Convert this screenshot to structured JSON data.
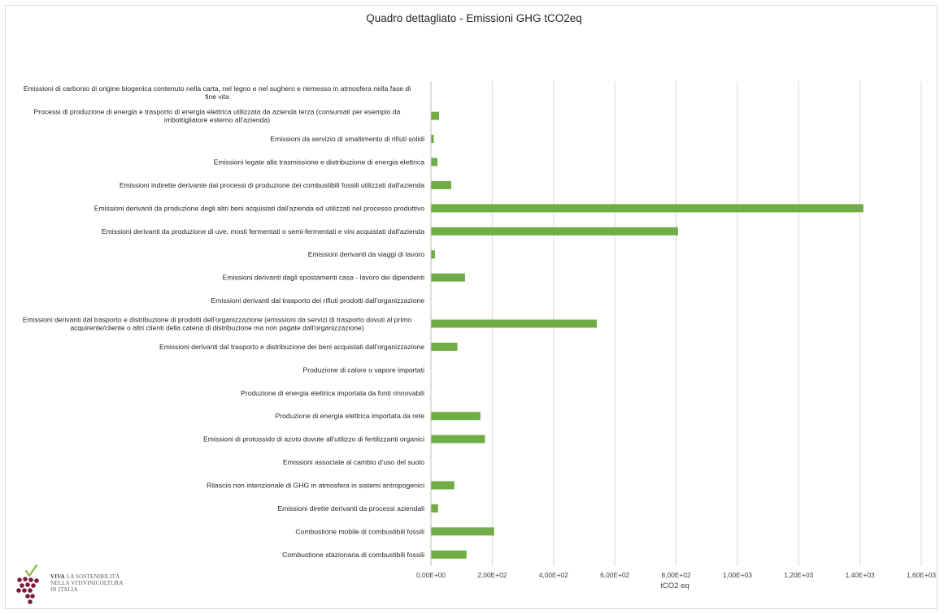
{
  "chart_data": {
    "type": "bar",
    "orientation": "horizontal",
    "title": "Quadro dettagliato - Emissioni GHG tCO2eq",
    "xlabel": "tCO2 eq",
    "ylabel": "",
    "xlim": [
      0,
      1600
    ],
    "grid": true,
    "bar_color": "#70ad47",
    "ticks": [
      "0,00E+00",
      "2,00E+02",
      "4,00E+02",
      "6,00E+02",
      "8,00E+02",
      "1,00E+03",
      "1,20E+03",
      "1,40E+03",
      "1,60E+03"
    ],
    "categories": [
      "Emissioni di carbonio di origine biogenica contenuto nella carta, nel legno  e nel sughero e riemesso in atmosfera nella fase di fine vita",
      "Processi di produzione di energia e trasporto di energia elettrica utilizzata  da azienda terza (consumati per esempio da imbottigliatore esterno all'azienda)",
      "Emissioni da servizio di smaltimento di rifiuti solidi",
      "Emissioni legate alla trasmissione e distribuzione  di energia elettrica",
      "Emissioni indirette derivante dai processi di produzione dei combustibili fossili utilizzati  dall'azienda",
      "Emissioni derivanti  da produzione degli altri  beni acquistati dall'azienda ed utilizzati  nel processo produttivo",
      "Emissioni derivanti  da produzione di uve,  mosti fermentati o semi-fermentati e vini  acquistati dall'azienda",
      "Emissioni derivanti  da viaggi di lavoro",
      "Emissioni derivanti  dagli spostamenti casa - lavoro dei dipendenti",
      "Emissioni derivanti  dal trasporto dei rifiuti prodotti dall'organizzazione",
      "Emissioni derivanti  dal trasporto e distribuzione di prodotti dell'organizzazione (emissioni da servizi di trasporto dovuti al primo acquirente/cliente o altri clienti della catena di distribuzione ma non pagate dall'organizzazione)",
      "Emissioni derivanti  dal trasporto e distribuzione dei beni acquistati dall'organizzazione",
      "Produzione di calore o vapore importati",
      "Produzione di energia elettrica importata da fonti rinnovabili",
      "Produzione di energia elettrica importata da rete",
      "Emissioni di protossido di azoto dovute all'utilizzo  di fertilizzanti organici",
      "Emissioni associate al cambio d'uso del suolo",
      "Rilascio non intenzionale di GHG in atmosfera in sistemi antropogenici",
      "Emissioni dirette derivanti  da processi aziendali",
      "Combustione mobile di combustibili fossili",
      "Combustione stazionaria di combustibili fossili"
    ],
    "category_lines": [
      [
        "Emissioni di carbonio di origine biogenica contenuto nella carta, nel legno  e nel sughero e riemesso in atmosfera nella fase di",
        "fine vita"
      ],
      [
        "Processi di produzione di energia e trasporto di energia elettrica utilizzata  da azienda terza (consumati per esempio da",
        "imbottigliatore esterno all'azienda)"
      ],
      [
        "Emissioni da servizio di smaltimento di rifiuti solidi"
      ],
      [
        "Emissioni legate alla trasmissione e distribuzione  di energia elettrica"
      ],
      [
        "Emissioni indirette derivante dai processi di produzione dei combustibili fossili utilizzati  dall'azienda"
      ],
      [
        "Emissioni derivanti  da produzione degli altri  beni acquistati dall'azienda ed utilizzati  nel processo produttivo"
      ],
      [
        "Emissioni derivanti  da produzione di uve,  mosti fermentati o semi-fermentati e vini  acquistati dall'azienda"
      ],
      [
        "Emissioni derivanti  da viaggi di lavoro"
      ],
      [
        "Emissioni derivanti  dagli spostamenti casa - lavoro dei dipendenti"
      ],
      [
        "Emissioni derivanti  dal trasporto dei rifiuti prodotti dall'organizzazione"
      ],
      [
        "Emissioni derivanti  dal trasporto e distribuzione di prodotti dell'organizzazione (emissioni da servizi di trasporto dovuti al primo",
        "acquirente/cliente o altri clienti della catena di distribuzione ma non pagate dall'organizzazione)"
      ],
      [
        "Emissioni derivanti  dal trasporto e distribuzione dei beni acquistati dall'organizzazione"
      ],
      [
        "Produzione di calore o vapore importati"
      ],
      [
        "Produzione di energia elettrica importata da fonti rinnovabili"
      ],
      [
        "Produzione di energia elettrica importata da rete"
      ],
      [
        "Emissioni di protossido di azoto dovute all'utilizzo  di fertilizzanti organici"
      ],
      [
        "Emissioni associate al cambio d'uso del suolo"
      ],
      [
        "Rilascio non intenzionale di GHG in atmosfera in sistemi antropogenici"
      ],
      [
        "Emissioni dirette derivanti  da processi aziendali"
      ],
      [
        "Combustione mobile di combustibili fossili"
      ],
      [
        "Combustione stazionaria di combustibili fossili"
      ]
    ],
    "values": [
      0,
      25,
      8,
      20,
      65,
      1410,
      805,
      12,
      110,
      0,
      540,
      85,
      0,
      0,
      160,
      175,
      0,
      75,
      22,
      205,
      115
    ]
  },
  "logo": {
    "brand": "VIVA",
    "line1": "LA SOSTENIBILITÀ",
    "line2": "NELLA VITIVINICOLTURA",
    "line3": "IN ITALIA",
    "grape_color": "#7b1a3a",
    "leaf_color": "#8ab83a"
  }
}
